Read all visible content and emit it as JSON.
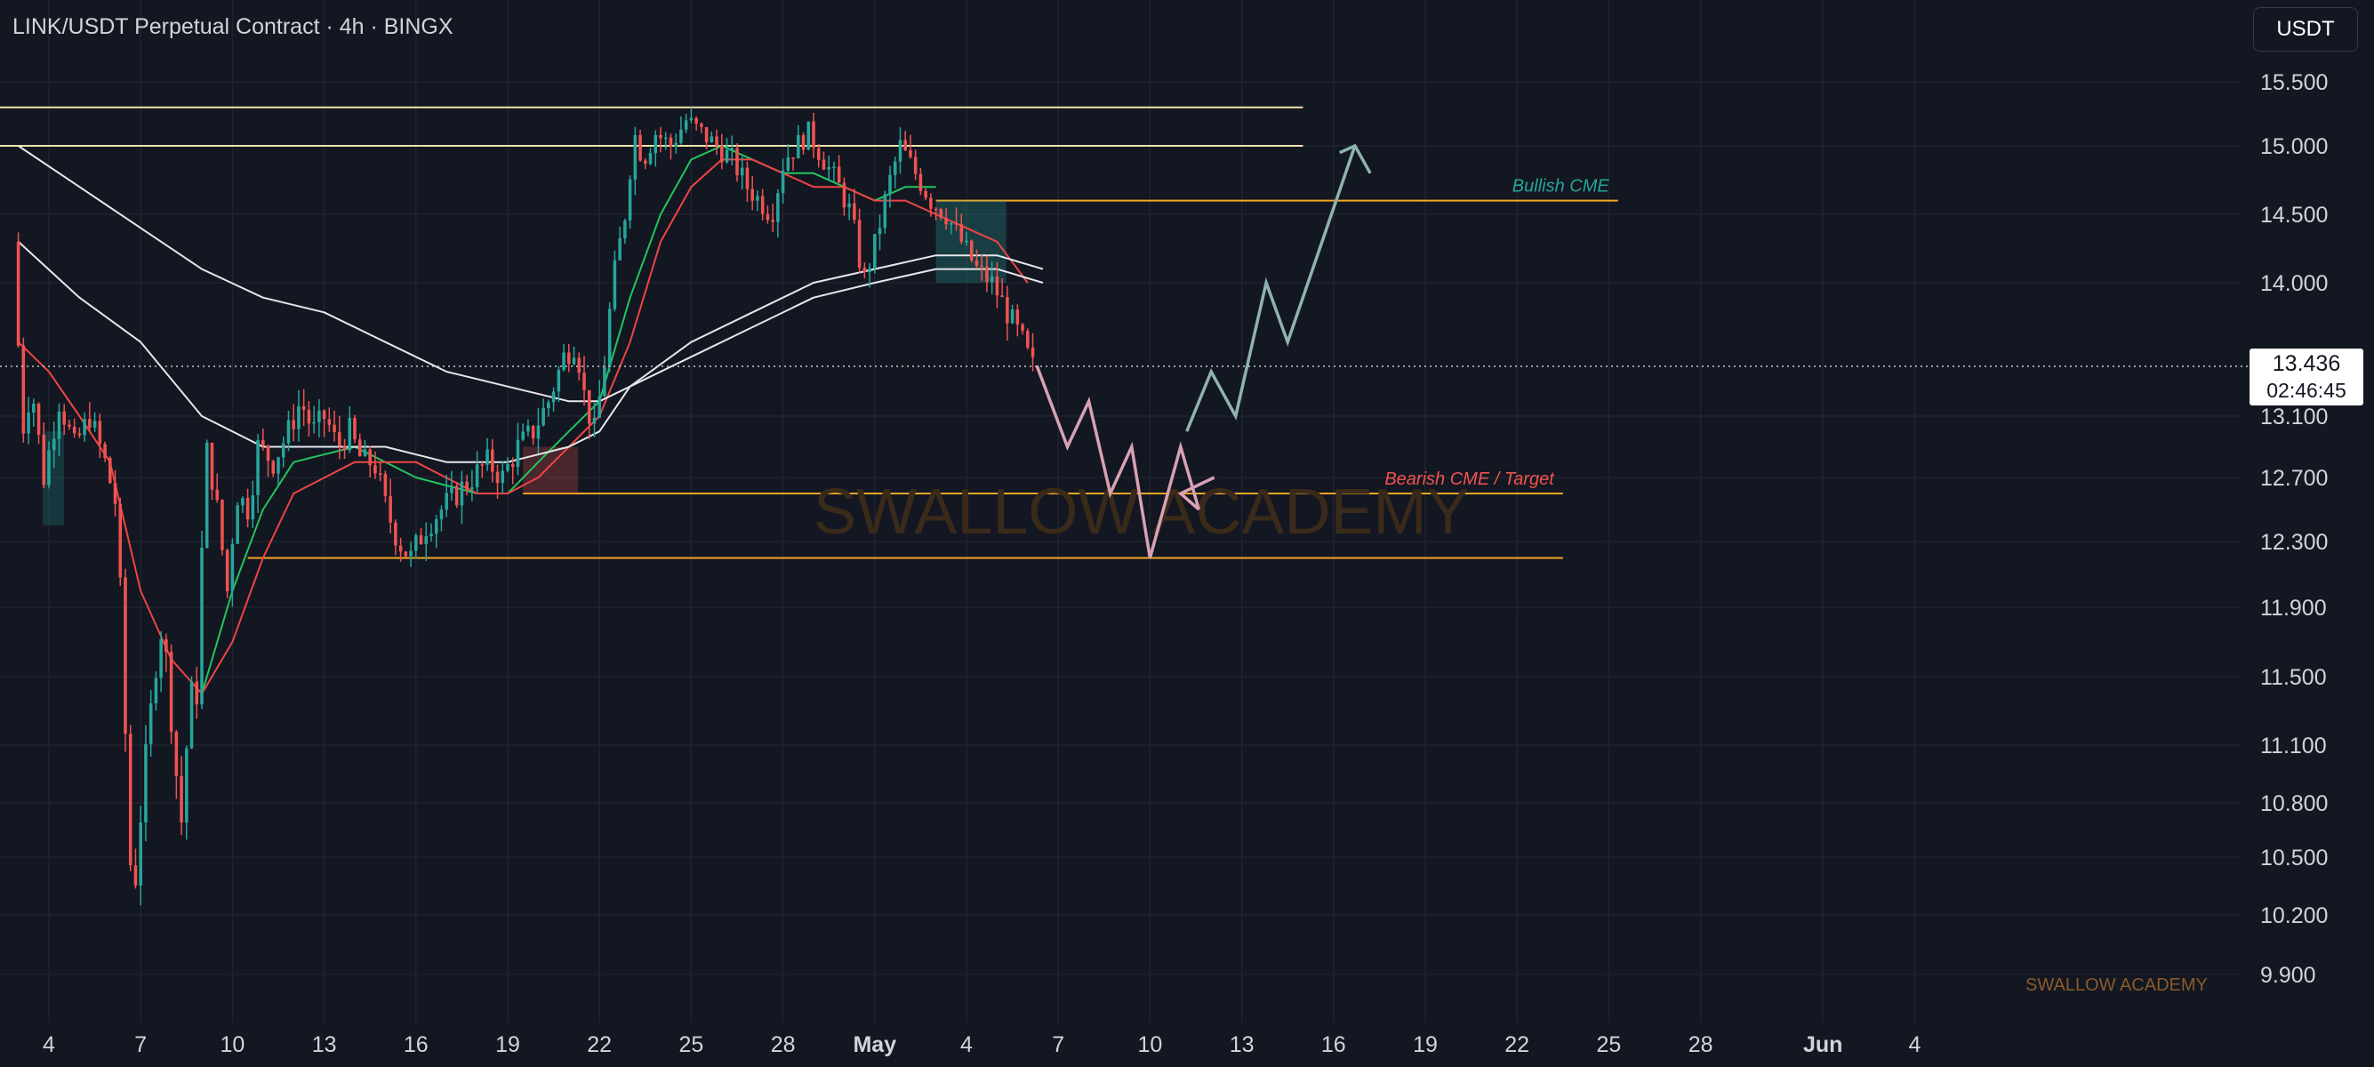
{
  "header": {
    "title": "LINK/USDT Perpetual Contract · 4h · BINGX",
    "currency": "USDT"
  },
  "last_price": {
    "value": "13.436",
    "countdown": "02:46:45"
  },
  "watermark": "SWALLOW ACADEMY",
  "brand_footer": "SWALLOW ACADEMY",
  "colors": {
    "background": "#131722",
    "grid": "#1f2430",
    "up": "#26a69a",
    "down": "#ef5350",
    "zone_line": "#f5a623",
    "top_line": "#f3e2a9",
    "ema_fast": "#22c55e",
    "ema_slow": "#ef4444",
    "ma_white": "#e5e7eb",
    "projection_down": "#d8a2b4",
    "projection_up": "#8fb3b0",
    "bullish_label": "#26a69a",
    "bearish_label": "#ef5350"
  },
  "chart_data": {
    "type": "candlestick",
    "symbol": "LINK/USDT Perpetual Contract",
    "timeframe": "4h",
    "exchange": "BINGX",
    "y_ticks": [
      "15.500",
      "15.000",
      "14.500",
      "14.000",
      "13.100",
      "12.700",
      "12.300",
      "11.900",
      "11.500",
      "11.100",
      "10.800",
      "10.500",
      "10.200",
      "9.900"
    ],
    "x_ticks": [
      {
        "label": "4",
        "day": 4
      },
      {
        "label": "7",
        "day": 7
      },
      {
        "label": "10",
        "day": 10
      },
      {
        "label": "13",
        "day": 13
      },
      {
        "label": "16",
        "day": 16
      },
      {
        "label": "19",
        "day": 19
      },
      {
        "label": "22",
        "day": 22
      },
      {
        "label": "25",
        "day": 25
      },
      {
        "label": "28",
        "day": 28
      },
      {
        "label": "May",
        "day": 31,
        "month": true
      },
      {
        "label": "4",
        "day": 34
      },
      {
        "label": "7",
        "day": 37
      },
      {
        "label": "10",
        "day": 40
      },
      {
        "label": "13",
        "day": 43
      },
      {
        "label": "16",
        "day": 46
      },
      {
        "label": "19",
        "day": 49
      },
      {
        "label": "22",
        "day": 52
      },
      {
        "label": "25",
        "day": 55
      },
      {
        "label": "28",
        "day": 58
      },
      {
        "label": "Jun",
        "day": 62,
        "month": true
      },
      {
        "label": "4",
        "day": 65
      }
    ],
    "price_path": [
      [
        3.0,
        14.3
      ],
      [
        3.3,
        13.0
      ],
      [
        3.6,
        13.3
      ],
      [
        4.0,
        12.7
      ],
      [
        4.5,
        13.2
      ],
      [
        5.0,
        12.9
      ],
      [
        5.5,
        13.1
      ],
      [
        6.0,
        12.8
      ],
      [
        6.4,
        12.5
      ],
      [
        6.7,
        11.0
      ],
      [
        6.9,
        10.2
      ],
      [
        7.2,
        10.8
      ],
      [
        7.5,
        11.3
      ],
      [
        7.8,
        11.8
      ],
      [
        8.0,
        11.6
      ],
      [
        8.3,
        11.0
      ],
      [
        8.5,
        10.7
      ],
      [
        8.8,
        11.4
      ],
      [
        9.0,
        11.4
      ],
      [
        9.3,
        12.9
      ],
      [
        9.6,
        12.6
      ],
      [
        10.0,
        12.0
      ],
      [
        10.3,
        12.6
      ],
      [
        10.7,
        12.5
      ],
      [
        11.0,
        12.9
      ],
      [
        11.5,
        12.8
      ],
      [
        12.0,
        13.0
      ],
      [
        12.4,
        13.2
      ],
      [
        12.8,
        13.0
      ],
      [
        13.2,
        13.1
      ],
      [
        13.6,
        12.9
      ],
      [
        14.0,
        13.0
      ],
      [
        14.4,
        12.8
      ],
      [
        14.8,
        12.8
      ],
      [
        15.2,
        12.5
      ],
      [
        15.6,
        12.3
      ],
      [
        16.0,
        12.2
      ],
      [
        16.5,
        12.4
      ],
      [
        17.0,
        12.5
      ],
      [
        17.5,
        12.6
      ],
      [
        18.0,
        12.7
      ],
      [
        18.5,
        12.8
      ],
      [
        19.0,
        12.7
      ],
      [
        19.5,
        12.9
      ],
      [
        20.0,
        13.0
      ],
      [
        20.5,
        13.2
      ],
      [
        21.0,
        13.5
      ],
      [
        21.4,
        13.6
      ],
      [
        21.7,
        13.2
      ],
      [
        22.0,
        13.0
      ],
      [
        22.3,
        13.4
      ],
      [
        22.6,
        14.0
      ],
      [
        23.0,
        14.5
      ],
      [
        23.3,
        15.1
      ],
      [
        23.6,
        14.9
      ],
      [
        24.0,
        15.1
      ],
      [
        24.5,
        15.0
      ],
      [
        25.0,
        15.2
      ],
      [
        25.5,
        15.1
      ],
      [
        26.0,
        15.0
      ],
      [
        26.5,
        14.9
      ],
      [
        27.0,
        14.7
      ],
      [
        27.4,
        14.6
      ],
      [
        27.8,
        14.5
      ],
      [
        28.2,
        14.9
      ],
      [
        28.6,
        15.0
      ],
      [
        29.0,
        15.1
      ],
      [
        29.5,
        14.9
      ],
      [
        30.0,
        14.7
      ],
      [
        30.4,
        14.5
      ],
      [
        30.8,
        14.0
      ],
      [
        31.2,
        14.3
      ],
      [
        31.6,
        14.7
      ],
      [
        32.0,
        15.0
      ],
      [
        32.5,
        14.8
      ],
      [
        33.0,
        14.6
      ],
      [
        33.5,
        14.5
      ],
      [
        34.0,
        14.3
      ],
      [
        34.5,
        14.1
      ],
      [
        35.0,
        14.0
      ],
      [
        35.5,
        13.8
      ],
      [
        36.0,
        13.6
      ],
      [
        36.3,
        13.436
      ]
    ],
    "moving_averages": [
      {
        "color_key": "ema_fast",
        "points": [
          [
            9.0,
            11.4
          ],
          [
            10.0,
            12.0
          ],
          [
            11.0,
            12.5
          ],
          [
            12.0,
            12.8
          ],
          [
            14.0,
            12.9
          ],
          [
            16.0,
            12.7
          ],
          [
            18.0,
            12.6
          ],
          [
            19.0,
            12.6
          ],
          [
            20.0,
            12.8
          ],
          [
            21.0,
            13.0
          ],
          [
            22.0,
            13.2
          ],
          [
            23.0,
            13.9
          ],
          [
            24.0,
            14.5
          ],
          [
            25.0,
            14.9
          ],
          [
            26.0,
            15.0
          ],
          [
            27.0,
            14.9
          ],
          [
            28.0,
            14.8
          ],
          [
            29.0,
            14.8
          ],
          [
            30.0,
            14.7
          ],
          [
            31.0,
            14.6
          ],
          [
            32.0,
            14.7
          ],
          [
            33.0,
            14.7
          ]
        ]
      },
      {
        "color_key": "ema_slow",
        "points": [
          [
            3.0,
            13.6
          ],
          [
            4.0,
            13.4
          ],
          [
            5.0,
            13.1
          ],
          [
            6.0,
            12.8
          ],
          [
            7.0,
            12.0
          ],
          [
            8.0,
            11.6
          ],
          [
            9.0,
            11.4
          ],
          [
            10.0,
            11.7
          ],
          [
            11.0,
            12.2
          ],
          [
            12.0,
            12.6
          ],
          [
            14.0,
            12.8
          ],
          [
            16.0,
            12.8
          ],
          [
            18.0,
            12.6
          ],
          [
            19.0,
            12.6
          ],
          [
            20.0,
            12.7
          ],
          [
            21.0,
            12.9
          ],
          [
            22.0,
            13.1
          ],
          [
            23.0,
            13.6
          ],
          [
            24.0,
            14.3
          ],
          [
            25.0,
            14.7
          ],
          [
            26.0,
            14.9
          ],
          [
            27.0,
            14.9
          ],
          [
            28.0,
            14.8
          ],
          [
            29.0,
            14.7
          ],
          [
            30.0,
            14.7
          ],
          [
            31.0,
            14.6
          ],
          [
            32.0,
            14.6
          ],
          [
            33.0,
            14.5
          ],
          [
            34.0,
            14.4
          ],
          [
            35.0,
            14.3
          ],
          [
            36.0,
            14.0
          ]
        ]
      },
      {
        "color_key": "ma_white",
        "points": [
          [
            3.0,
            15.0
          ],
          [
            5.0,
            14.7
          ],
          [
            7.0,
            14.4
          ],
          [
            9.0,
            14.1
          ],
          [
            11.0,
            13.9
          ],
          [
            13.0,
            13.8
          ],
          [
            15.0,
            13.6
          ],
          [
            17.0,
            13.4
          ],
          [
            19.0,
            13.3
          ],
          [
            21.0,
            13.2
          ],
          [
            22.0,
            13.2
          ],
          [
            23.0,
            13.3
          ],
          [
            25.0,
            13.5
          ],
          [
            27.0,
            13.7
          ],
          [
            29.0,
            13.9
          ],
          [
            31.0,
            14.0
          ],
          [
            33.0,
            14.1
          ],
          [
            35.0,
            14.1
          ],
          [
            36.5,
            14.0
          ]
        ]
      },
      {
        "color_key": "ma_white",
        "points": [
          [
            3.0,
            14.3
          ],
          [
            5.0,
            13.9
          ],
          [
            7.0,
            13.6
          ],
          [
            9.0,
            13.1
          ],
          [
            11.0,
            12.9
          ],
          [
            13.0,
            12.9
          ],
          [
            15.0,
            12.9
          ],
          [
            17.0,
            12.8
          ],
          [
            19.0,
            12.8
          ],
          [
            21.0,
            12.9
          ],
          [
            22.0,
            13.0
          ],
          [
            23.0,
            13.3
          ],
          [
            25.0,
            13.6
          ],
          [
            27.0,
            13.8
          ],
          [
            29.0,
            14.0
          ],
          [
            31.0,
            14.1
          ],
          [
            33.0,
            14.2
          ],
          [
            35.0,
            14.2
          ],
          [
            36.5,
            14.1
          ]
        ]
      }
    ],
    "horizontal_lines": [
      {
        "price": 15.3,
        "from_day": 0,
        "to_day": 45.0,
        "color_key": "top_line"
      },
      {
        "price": 15.0,
        "from_day": 0,
        "to_day": 45.0,
        "color_key": "top_line"
      },
      {
        "price": 14.6,
        "from_day": 33.0,
        "to_day": 55.3,
        "color_key": "zone_line",
        "label": "Bullish CME",
        "label_color_key": "bullish_label"
      },
      {
        "price": 12.6,
        "from_day": 19.5,
        "to_day": 53.5,
        "color_key": "zone_line",
        "label": "Bearish CME / Target",
        "label_color_key": "bearish_label"
      },
      {
        "price": 12.2,
        "from_day": 10.5,
        "to_day": 53.5,
        "color_key": "zone_line"
      }
    ],
    "projection": {
      "down_leg": [
        [
          36.3,
          13.44
        ],
        [
          37.3,
          12.9
        ],
        [
          38.0,
          13.2
        ],
        [
          38.7,
          12.6
        ],
        [
          39.4,
          12.9
        ],
        [
          40.0,
          12.2
        ],
        [
          41.0,
          12.9
        ],
        [
          41.6,
          12.5
        ]
      ],
      "down_leg_arrow": [
        [
          41.6,
          12.5
        ],
        [
          41.0,
          12.6
        ],
        [
          42.1,
          12.7
        ]
      ],
      "up_leg": [
        [
          41.2,
          13.0
        ],
        [
          42.0,
          13.4
        ],
        [
          42.8,
          13.1
        ],
        [
          43.8,
          14.0
        ],
        [
          44.5,
          13.6
        ],
        [
          46.7,
          15.0
        ]
      ],
      "up_leg_arrow": [
        [
          46.2,
          14.95
        ],
        [
          46.7,
          15.0
        ],
        [
          47.2,
          14.8
        ]
      ]
    },
    "current_price": 13.436
  }
}
